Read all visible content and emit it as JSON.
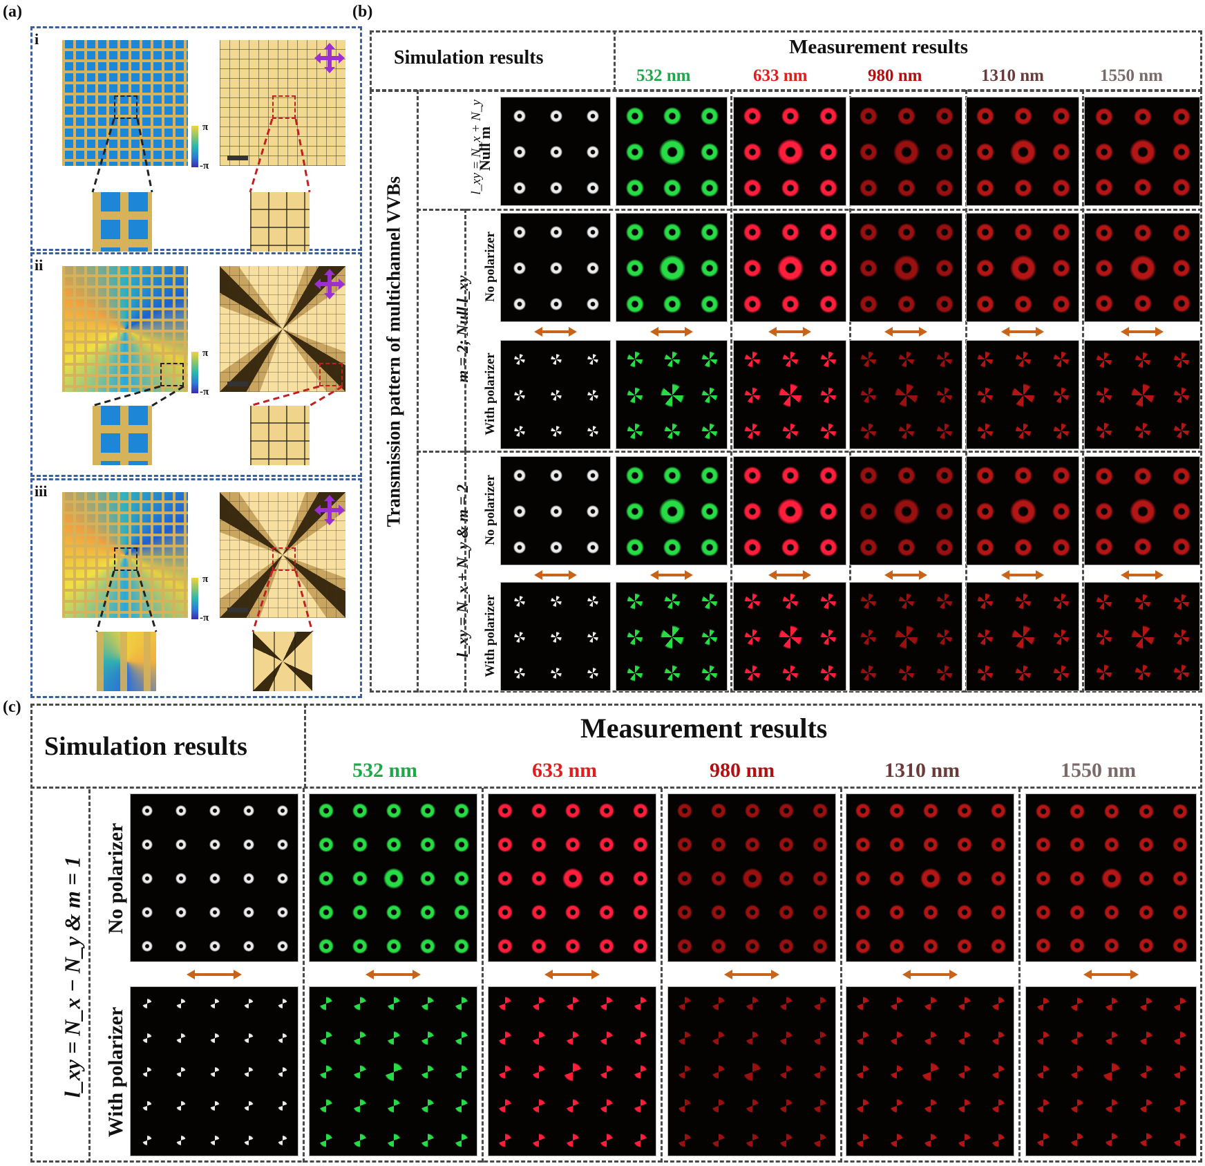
{
  "figure": {
    "panel_labels": {
      "a": "(a)",
      "b": "(b)",
      "c": "(c)"
    },
    "panel_a": {
      "rows": [
        {
          "label": "i",
          "colorbar_max": "π",
          "colorbar_min": "-π",
          "pattern": "plain"
        },
        {
          "label": "ii",
          "colorbar_max": "π",
          "colorbar_min": "-π",
          "pattern": "vortex-corner"
        },
        {
          "label": "iii",
          "colorbar_max": "π",
          "colorbar_min": "-π",
          "pattern": "vortex-center"
        }
      ],
      "polarizer_icon": "crossed-polarizer-arrows-icon",
      "colors": {
        "border": "#3a5f9e",
        "arrow": "#9b2fd0",
        "zoom_box_sim": "#222222",
        "zoom_box_exp": "#c02020"
      }
    },
    "panel_b": {
      "simulation_header": "Simulation results",
      "measurement_header": "Measurement results",
      "side_title": "Transmission pattern of multichannel VVBs",
      "wavelengths": [
        {
          "label": "532 nm",
          "color": "#1fa84a",
          "beam": "green"
        },
        {
          "label": "633 nm",
          "color": "#e01e1e",
          "beam": "red-bright"
        },
        {
          "label": "980 nm",
          "color": "#b01010",
          "beam": "red-dim"
        },
        {
          "label": "1310 nm",
          "color": "#6b3a3a",
          "beam": "red-mid"
        },
        {
          "label": "1550 nm",
          "color": "#7a6a6a",
          "beam": "red-mid"
        }
      ],
      "groups": [
        {
          "label_line1": "l_xy = N_x + N_y",
          "label_line2": "Null m",
          "rows": [
            {
              "sub": "",
              "pattern": "ring"
            }
          ]
        },
        {
          "label_line1": "m = 2; Null l_xy",
          "label_line2": "",
          "rows": [
            {
              "sub": "No polarizer",
              "pattern": "ring"
            },
            {
              "sub": "With polarizer",
              "pattern": "petal4"
            }
          ]
        },
        {
          "label_line1": "l_xy = N_x + N_y & m = 2",
          "label_line2": "",
          "rows": [
            {
              "sub": "No polarizer",
              "pattern": "ring"
            },
            {
              "sub": "With polarizer",
              "pattern": "petal4"
            }
          ]
        }
      ],
      "grid": "3x3",
      "polarizer_arrow_color": "#c8641a"
    },
    "panel_c": {
      "simulation_header": "Simulation results",
      "measurement_header": "Measurement results",
      "side_title": "l_xy = N_x − N_y & m = 1",
      "rows": [
        {
          "sub": "No polarizer",
          "pattern": "ring"
        },
        {
          "sub": "With polarizer",
          "pattern": "petal2"
        }
      ],
      "wavelengths": [
        {
          "label": "532 nm",
          "color": "#1fa84a",
          "beam": "green"
        },
        {
          "label": "633 nm",
          "color": "#e01e1e",
          "beam": "red-bright"
        },
        {
          "label": "980 nm",
          "color": "#b01010",
          "beam": "red-dim"
        },
        {
          "label": "1310 nm",
          "color": "#6b3a3a",
          "beam": "red-mid"
        },
        {
          "label": "1550 nm",
          "color": "#7a6a6a",
          "beam": "red-mid"
        }
      ],
      "grid": "5x5",
      "polarizer_arrow_color": "#c8641a"
    }
  }
}
